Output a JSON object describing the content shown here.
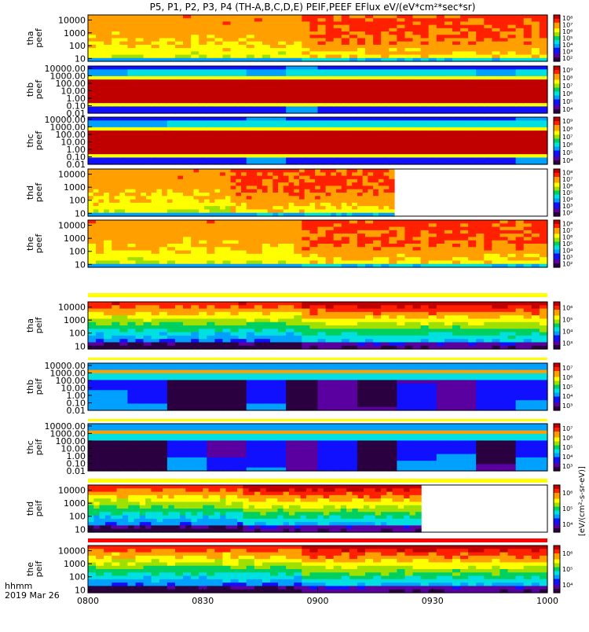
{
  "title": "P5, P1, P2, P3, P4 (TH-A,B,C,D,E) PEIF,PEEF EFlux eV/(eV*cm²*sec*sr)",
  "colorbar_label": "[eV/(cm²-s-sr-eV)]",
  "x_caption": [
    "hhmm",
    "2019 Mar 26"
  ],
  "chart_data": {
    "type": "heatmap",
    "x_range": [
      "0800",
      "1000"
    ],
    "x_ticks": [
      "0800",
      "0830",
      "0900",
      "0930",
      "1000"
    ],
    "panels": [
      {
        "probe": "tha",
        "product": "peef",
        "ylabel": [
          "tha",
          "peef"
        ],
        "yticks": [
          "10",
          "100",
          "1000",
          "10000"
        ],
        "ymin": 6,
        "ymax": 25000,
        "cbar_ticks": [
          "10²",
          "10³",
          "10⁴",
          "10⁵",
          "10⁶",
          "10⁷",
          "10⁸"
        ],
        "cmin": 2,
        "cmax": 8,
        "data_end": "1000"
      },
      {
        "probe": "thb",
        "product": "peef",
        "ylabel": [
          "thb",
          "peef"
        ],
        "yticks": [
          "0.01",
          "0.10",
          "1.00",
          "10.00",
          "100.00",
          "1000.00",
          "10000.00"
        ],
        "ymin": 0.01,
        "ymax": 20000,
        "cbar_ticks": [
          "10⁴",
          "10⁵",
          "10⁶",
          "10⁷",
          "10⁸",
          "10⁹"
        ],
        "cmin": 4,
        "cmax": 9,
        "data_end": "1000"
      },
      {
        "probe": "thc",
        "product": "peef",
        "ylabel": [
          "thc",
          "peef"
        ],
        "yticks": [
          "0.01",
          "0.10",
          "1.00",
          "10.00",
          "100.00",
          "1000.00",
          "10000.00"
        ],
        "ymin": 0.01,
        "ymax": 20000,
        "cbar_ticks": [
          "10⁴",
          "10⁵",
          "10⁶",
          "10⁷",
          "10⁸",
          "10⁹"
        ],
        "cmin": 4,
        "cmax": 9,
        "data_end": "1000"
      },
      {
        "probe": "thd",
        "product": "peef",
        "ylabel": [
          "thd",
          "peef"
        ],
        "yticks": [
          "10",
          "100",
          "1000",
          "10000"
        ],
        "ymin": 6,
        "ymax": 25000,
        "cbar_ticks": [
          "10²",
          "10³",
          "10⁴",
          "10⁵",
          "10⁶",
          "10⁷",
          "10⁸"
        ],
        "cmin": 2,
        "cmax": 8,
        "data_end": "0920"
      },
      {
        "probe": "the",
        "product": "peef",
        "ylabel": [
          "the",
          "peef"
        ],
        "yticks": [
          "10",
          "100",
          "1000",
          "10000"
        ],
        "ymin": 6,
        "ymax": 25000,
        "cbar_ticks": [
          "10²",
          "10³",
          "10⁴",
          "10⁵",
          "10⁶",
          "10⁷",
          "10⁸"
        ],
        "cmin": 2,
        "cmax": 8,
        "data_end": "1000"
      },
      {
        "probe": "tha",
        "product": "peif",
        "ylabel": [
          "tha",
          "peif"
        ],
        "yticks": [
          "10",
          "100",
          "1000",
          "10000"
        ],
        "ymin": 6,
        "ymax": 25000,
        "cbar_ticks": [
          "10³",
          "10⁴",
          "10⁵",
          "10⁶"
        ],
        "cmin": 2.5,
        "cmax": 6.5,
        "data_end": "1000"
      },
      {
        "probe": "thb",
        "product": "peif",
        "ylabel": [
          "thb",
          "peif"
        ],
        "yticks": [
          "0.01",
          "0.10",
          "1.00",
          "10.00",
          "100.00",
          "1000.00",
          "10000.00"
        ],
        "ymin": 0.01,
        "ymax": 20000,
        "cbar_ticks": [
          "10³",
          "10⁴",
          "10⁵",
          "10⁶",
          "10⁷"
        ],
        "cmin": 2.5,
        "cmax": 7.5,
        "data_end": "1000"
      },
      {
        "probe": "thc",
        "product": "peif",
        "ylabel": [
          "thc",
          "peif"
        ],
        "yticks": [
          "0.01",
          "0.10",
          "1.00",
          "10.00",
          "100.00",
          "1000.00",
          "10000.00"
        ],
        "ymin": 0.01,
        "ymax": 20000,
        "cbar_ticks": [
          "10³",
          "10⁴",
          "10⁵",
          "10⁶",
          "10⁷"
        ],
        "cmin": 2.5,
        "cmax": 7.5,
        "data_end": "1000"
      },
      {
        "probe": "thd",
        "product": "peif",
        "ylabel": [
          "thd",
          "peif"
        ],
        "yticks": [
          "10",
          "100",
          "1000",
          "10000"
        ],
        "ymin": 6,
        "ymax": 25000,
        "cbar_ticks": [
          "10⁴",
          "10⁵",
          "10⁶"
        ],
        "cmin": 3.5,
        "cmax": 6.5,
        "data_end": "0927"
      },
      {
        "probe": "the",
        "product": "peif",
        "ylabel": [
          "the",
          "peif"
        ],
        "yticks": [
          "10",
          "100",
          "1000",
          "10000"
        ],
        "ymin": 6,
        "ymax": 25000,
        "cbar_ticks": [
          "10⁴",
          "10⁵",
          "10⁶"
        ],
        "cmin": 3.5,
        "cmax": 6.5,
        "data_end": "1000"
      }
    ],
    "colormap": [
      "#2a0040",
      "#5a00a0",
      "#1010ff",
      "#00a0ff",
      "#00e0e0",
      "#00d060",
      "#a0e000",
      "#ffff00",
      "#ffa000",
      "#ff2000",
      "#c00000"
    ]
  }
}
